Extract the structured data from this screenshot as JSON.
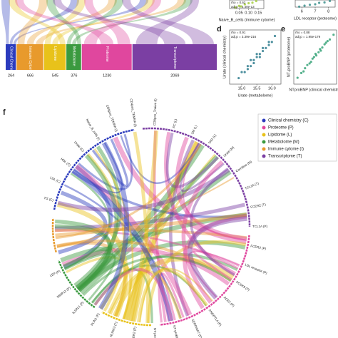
{
  "chart_data": [
    {
      "type": "bar",
      "categories": [
        "Clinical Chemistry",
        "Immune Cytome",
        "Lipidome",
        "Metabolome",
        "Proteome",
        "Transcriptome"
      ],
      "values": [
        264,
        666,
        545,
        376,
        1230,
        2069
      ],
      "colors": [
        "#2b3bbd",
        "#e89a2c",
        "#e8c21a",
        "#3b9a3f",
        "#e0479e",
        "#7b3fa3"
      ]
    },
    {
      "type": "scatter",
      "x": [
        0.03,
        0.05,
        0.06,
        0.08,
        0.1,
        0.12,
        0.14
      ],
      "values": [
        1.2,
        1.5,
        1.4,
        1.8,
        2.0,
        2.1,
        2.4
      ],
      "xlim": [
        0.0,
        0.18
      ],
      "ylim": [
        1,
        2.6
      ],
      "xticks": [
        {
          "value": 0.05,
          "label": "0.05"
        },
        {
          "value": 0.1,
          "label": "0.10"
        },
        {
          "value": 0.15,
          "label": "0.15"
        }
      ],
      "x_label": "Naive_B_cells (immune cytome)",
      "annotations": [
        "rho = 0.62",
        "adj.p = 2.40e-13"
      ],
      "color": "#a6cf3e"
    },
    {
      "type": "scatter",
      "x": [
        5.8,
        6.2,
        6.6,
        7.0,
        7.3,
        7.7,
        8.1
      ],
      "values": [
        1.1,
        1.3,
        1.5,
        1.6,
        1.9,
        2.0,
        2.3
      ],
      "xlim": [
        5.5,
        8.5
      ],
      "ylim": [
        1,
        2.5
      ],
      "xticks": [
        6,
        7,
        8
      ],
      "x_label": "LDL receptor (proteome)",
      "color": "#3c8f8c"
    },
    {
      "type": "scatter",
      "panel": "d",
      "x": [
        14.9,
        15.0,
        15.1,
        15.2,
        15.3,
        15.4,
        15.4,
        15.5,
        15.5,
        15.6,
        15.7,
        15.7,
        15.8,
        15.9,
        16.0,
        16.1,
        15.2,
        15.6,
        15.9,
        15.3
      ],
      "values": [
        14.8,
        15.0,
        15.0,
        15.2,
        15.2,
        15.4,
        15.3,
        15.5,
        15.6,
        15.6,
        15.7,
        15.8,
        15.8,
        16.0,
        16.0,
        16.2,
        15.1,
        15.5,
        15.9,
        15.4
      ],
      "xlim": [
        14.6,
        16.3
      ],
      "ylim": [
        14.6,
        16.4
      ],
      "xticks": [
        {
          "value": 15,
          "label": "15.0"
        },
        {
          "value": 15.5,
          "label": "15.5"
        },
        {
          "value": 16,
          "label": "16.0"
        }
      ],
      "x_label": "Urate (metabolome)",
      "y_label": "Urate (clinical chemistry)",
      "annotations": [
        "rho = 0.91",
        "adj.p = 3.39e-216"
      ],
      "color": "#2f7d8e"
    },
    {
      "type": "scatter",
      "panel": "e",
      "x": [
        2.0,
        2.5,
        3.0,
        3.3,
        3.6,
        4.0,
        4.2,
        4.5,
        4.8,
        5.0,
        5.3,
        5.6,
        6.0,
        6.3,
        6.8,
        3.8,
        4.4,
        5.1,
        2.8,
        5.8
      ],
      "values": [
        1.2,
        1.5,
        1.8,
        2.0,
        2.1,
        2.4,
        2.5,
        2.6,
        2.8,
        3.0,
        3.1,
        3.3,
        3.5,
        3.6,
        3.9,
        2.2,
        2.7,
        2.9,
        1.6,
        3.4
      ],
      "xlim": [
        1.5,
        7.2
      ],
      "ylim": [
        0.8,
        4.2
      ],
      "x_label": "NTproBNP (clinical chemistry)",
      "y_label": "NT-proBNP (proteome)",
      "annotations": [
        "rho = 0.88",
        "adj.p = 1.95e-179"
      ],
      "color": "#3aa57a"
    },
    {
      "type": "chord",
      "panel": "f",
      "legend": [
        {
          "name": "Clinical chemistry (C)",
          "color": "#2b3bbd"
        },
        {
          "name": "Proteome (P)",
          "color": "#e0479e"
        },
        {
          "name": "Lipidome (L)",
          "color": "#e8c21a"
        },
        {
          "name": "Metabolome (M)",
          "color": "#3b9a3f"
        },
        {
          "name": "Immune cytome (I)",
          "color": "#e89a2c"
        },
        {
          "name": "Transcriptome (T)",
          "color": "#7b3fa3"
        }
      ],
      "labels": [
        "TG (C)",
        "LDL (C)",
        "HDL (C)",
        "Urate (C)",
        "Naive_B_cells (I)",
        "CD8pos_TEMRA (I)",
        "CD4pos_TEMRA (I)",
        "CD8pos_Tnaive (I)",
        "PC (L)",
        "SM (L)",
        "TAG (L)",
        "Urate (M)",
        "Carnitine (M)",
        "TCL1A (T)",
        "FCER2 (T)",
        "TCL1A (P)",
        "FCER2 (P)",
        "LDL receptor (P)",
        "PCSK9 (P)",
        "ACE2 (P)",
        "ANGPTL4 (P)",
        "SERPINA7 (P)",
        "NT-proBNP (P)",
        "NT-proBNP (C)",
        "FCER2 (P)",
        "RUNX3 (T)",
        "PLIN1 (P)",
        "IL1RL1 (P)",
        "MMP12 (P)",
        "LEP (P)"
      ]
    }
  ]
}
